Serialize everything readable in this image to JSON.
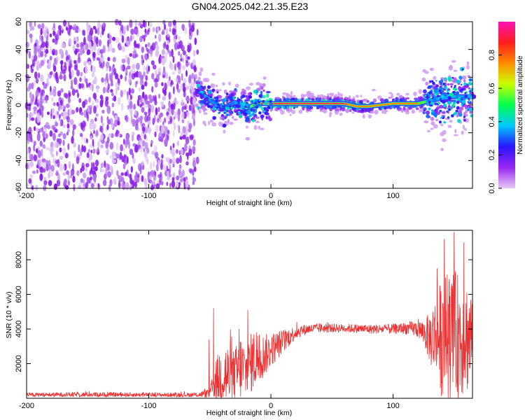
{
  "figure": {
    "title": "GN04.2025.042.21.35.E23"
  },
  "chart_data": [
    {
      "type": "heatmap",
      "title": "GN04.2025.042.21.35.E23",
      "xlabel": "Height of straight line (km)",
      "ylabel": "Frequency (Hz)",
      "xlim": [
        -200,
        165
      ],
      "ylim": [
        -60,
        60
      ],
      "x_ticks": [
        -200,
        -100,
        0,
        100
      ],
      "y_ticks": [
        -60,
        -40,
        -20,
        0,
        20,
        40,
        60
      ],
      "colorbar": {
        "label": "Normalized spectral amplitude",
        "range": [
          0.0,
          1.0
        ],
        "ticks": [
          0.0,
          0.2,
          0.4,
          0.6,
          0.8
        ],
        "tick_labels": [
          "0.0",
          "0.2",
          "0.4",
          "0.6",
          "0.8"
        ],
        "colors": [
          "#e6c8f5",
          "#9a28f0",
          "#2a14ff",
          "#00c8ff",
          "#00ff50",
          "#c8ff00",
          "#ff8c00",
          "#ff1e1e",
          "#ff14b4"
        ]
      },
      "regions": [
        {
          "x_range": [
            -200,
            -60
          ],
          "freq_range": [
            -60,
            60
          ],
          "amplitude": 0.05,
          "description_values": "broadband noise"
        },
        {
          "x_range": [
            -60,
            0
          ],
          "freq_center": 0,
          "freq_spread": 12,
          "amplitude": 0.35
        },
        {
          "x_range": [
            0,
            125
          ],
          "freq_center": 1,
          "freq_spread": 2,
          "amplitude": 0.95
        },
        {
          "x_range": [
            125,
            165
          ],
          "freq_center": 2,
          "freq_spread": 15,
          "amplitude": 0.35
        }
      ],
      "ridge": {
        "x": [
          -60,
          -50,
          -40,
          -30,
          -20,
          -10,
          0,
          20,
          40,
          60,
          70,
          80,
          90,
          100,
          110,
          120,
          130,
          140,
          150,
          165
        ],
        "freq": [
          10,
          4,
          -3,
          2,
          -2,
          1,
          1,
          1,
          1,
          1,
          -1,
          -1,
          0,
          1,
          1,
          1,
          3,
          5,
          6,
          6
        ],
        "amplitude": [
          0.3,
          0.35,
          0.3,
          0.4,
          0.55,
          0.7,
          0.95,
          0.95,
          0.95,
          0.95,
          0.8,
          0.8,
          0.8,
          0.85,
          0.85,
          0.7,
          0.4,
          0.35,
          0.35,
          0.3
        ]
      }
    },
    {
      "type": "line",
      "xlabel": "Height of straight line (km)",
      "ylabel": "SNR (10 * v/v)",
      "xlim": [
        -200,
        165
      ],
      "ylim": [
        0,
        9700
      ],
      "x_ticks": [
        -200,
        -100,
        0,
        100
      ],
      "y_ticks": [
        2000,
        4000,
        6000,
        8000
      ],
      "series": [
        {
          "color": "#ee3030",
          "envelope": {
            "x": [
              -200,
              -150,
              -100,
              -60,
              -50,
              -45,
              -40,
              -35,
              -30,
              -25,
              -20,
              -15,
              -10,
              -5,
              0,
              10,
              20,
              30,
              40,
              60,
              80,
              100,
              110,
              120,
              125,
              130,
              140,
              150,
              160,
              165
            ],
            "mean": [
              200,
              220,
              200,
              200,
              300,
              1000,
              1500,
              1200,
              1300,
              1800,
              1500,
              2200,
              2300,
              2500,
              2800,
              3300,
              3800,
              4000,
              4050,
              4050,
              4000,
              4000,
              4050,
              4000,
              3800,
              3500,
              3500,
              3600,
              3600,
              3500
            ],
            "amp": [
              120,
              140,
              120,
              130,
              300,
              1200,
              2000,
              2000,
              1500,
              2000,
              1600,
              1800,
              1600,
              1200,
              1000,
              700,
              400,
              300,
              280,
              250,
              280,
              300,
              350,
              500,
              700,
              1500,
              3500,
              3800,
              3400,
              2800
            ]
          },
          "peaks": [
            {
              "x": -50.5,
              "y": 3400
            },
            {
              "x": -47,
              "y": 5200
            },
            {
              "x": -26,
              "y": 4000
            },
            {
              "x": -19,
              "y": 5100
            },
            {
              "x": -12,
              "y": 3800
            },
            {
              "x": 142,
              "y": 9200
            },
            {
              "x": 150,
              "y": 9600
            },
            {
              "x": 158,
              "y": 9000
            },
            {
              "x": 136,
              "y": 7500
            }
          ]
        }
      ]
    }
  ]
}
